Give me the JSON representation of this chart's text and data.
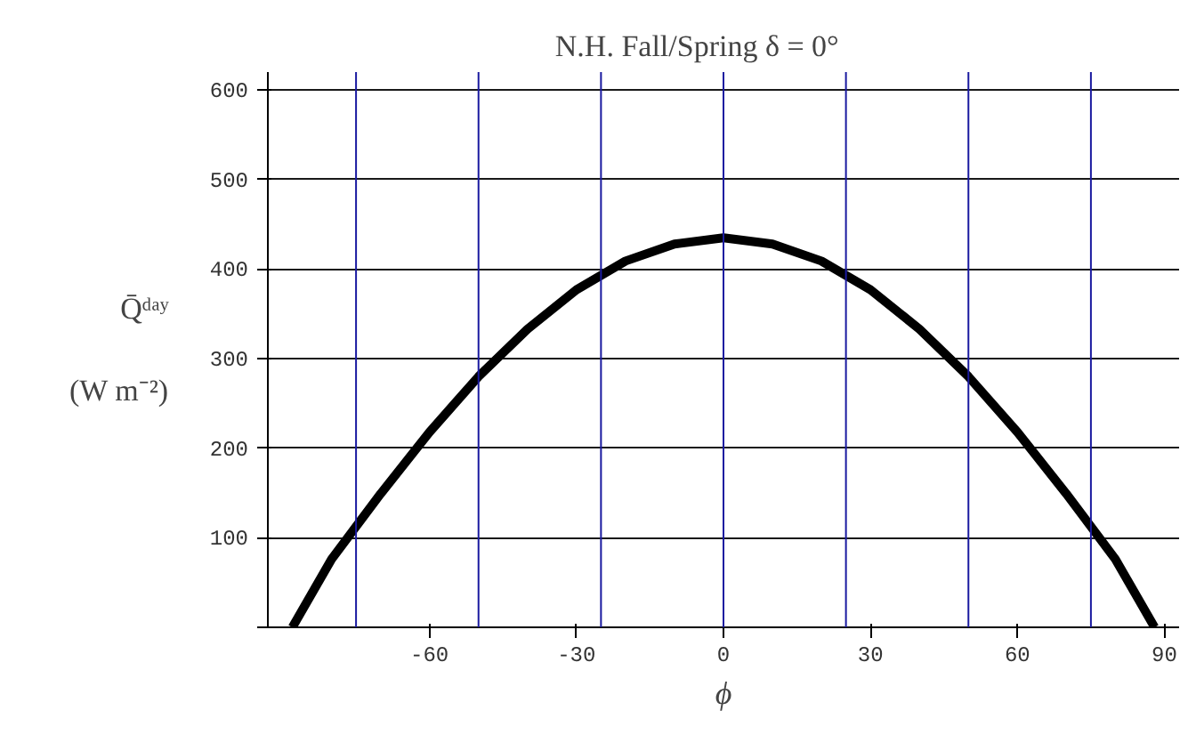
{
  "chart_data": {
    "type": "line",
    "title": "N.H. Fall/Spring        δ = 0°",
    "xlabel": "ϕ",
    "ylabel": "Q̄ᵈᵃʸ (W m⁻²)",
    "x": [
      -88,
      -80,
      -70,
      -60,
      -50,
      -40,
      -30,
      -20,
      -10,
      0,
      10,
      20,
      30,
      40,
      50,
      60,
      70,
      80,
      88
    ],
    "series": [
      {
        "color": "#000000",
        "values": [
          0,
          76,
          149,
          218,
          280,
          333,
          377,
          409,
          428,
          435,
          428,
          409,
          377,
          333,
          280,
          218,
          149,
          76,
          0
        ]
      }
    ],
    "xlim": [
      -93,
      93
    ],
    "ylim": [
      0,
      620
    ],
    "xticks": [
      -60,
      -30,
      0,
      30,
      60,
      90
    ],
    "yticks": [
      {
        "value": 0,
        "label": null
      },
      100,
      200,
      300,
      400,
      500,
      600
    ],
    "grid": "y",
    "marker": "none",
    "line_style": "solid",
    "ref_lines": [
      {
        "axis": "x",
        "value": -75,
        "color": "#1a1aa0"
      },
      {
        "axis": "x",
        "value": -50,
        "color": "#1a1aa0"
      },
      {
        "axis": "x",
        "value": -25,
        "color": "#1a1aa0"
      },
      {
        "axis": "x",
        "value": 0,
        "color": "#1a1aa0"
      },
      {
        "axis": "x",
        "value": 25,
        "color": "#1a1aa0"
      },
      {
        "axis": "x",
        "value": 50,
        "color": "#1a1aa0"
      },
      {
        "axis": "x",
        "value": 75,
        "color": "#1a1aa0"
      }
    ]
  }
}
